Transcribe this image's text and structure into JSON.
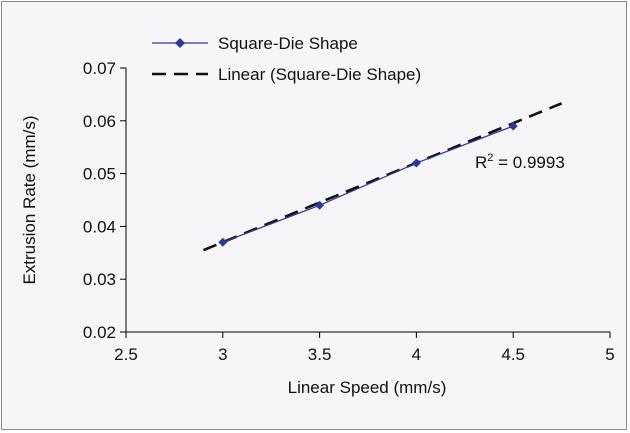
{
  "chart_data": {
    "type": "line",
    "title": "",
    "xlabel": "Linear Speed (mm/s)",
    "ylabel": "Extrusion Rate (mm/s)",
    "xlim": [
      2.5,
      5
    ],
    "ylim": [
      0.02,
      0.07
    ],
    "x_ticks": [
      "2.5",
      "3",
      "3.5",
      "4",
      "4.5",
      "5"
    ],
    "y_ticks": [
      "0.02",
      "0.03",
      "0.04",
      "0.05",
      "0.06",
      "0.07"
    ],
    "grid": false,
    "legend_position": "top-left",
    "series": [
      {
        "name": "Square-Die Shape",
        "color": "#2b3a9a",
        "marker": "diamond",
        "x": [
          3,
          3.5,
          4,
          4.5
        ],
        "y": [
          0.037,
          0.044,
          0.052,
          0.059
        ]
      },
      {
        "name": "Linear (Square-Die Shape)",
        "color": "#111111",
        "style": "dashed",
        "x": [
          2.9,
          4.75
        ],
        "y": [
          0.0355,
          0.0633
        ]
      }
    ],
    "annotation": {
      "r2_prefix": "R",
      "r2_exponent": "2",
      "r2_value": " = 0.9993"
    }
  }
}
